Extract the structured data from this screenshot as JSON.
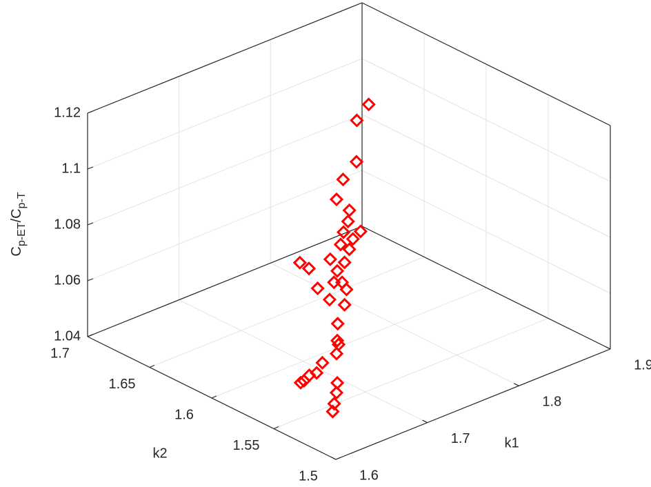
{
  "chart_data": {
    "type": "scatter3d",
    "xlabel": "k1",
    "ylabel": "k2",
    "zlabel": [
      "C",
      "p-ET",
      "/C",
      "p-T"
    ],
    "color": "#ff0000",
    "grid": true,
    "xlim": [
      1.6,
      1.9
    ],
    "xticks": [
      1.6,
      1.7,
      1.8,
      1.9
    ],
    "ylim": [
      1.5,
      1.7
    ],
    "yticks": [
      1.5,
      1.55,
      1.6,
      1.65,
      1.7
    ],
    "zlim": [
      1.04,
      1.12
    ],
    "zticks": [
      1.04,
      1.06,
      1.08,
      1.1,
      1.12
    ],
    "x": [
      1.872,
      1.859,
      1.822,
      1.806,
      1.788,
      1.779,
      1.76,
      1.768,
      1.759,
      1.753,
      1.749,
      1.745,
      1.733,
      1.728,
      1.735,
      1.733,
      1.725,
      1.716,
      1.714,
      1.709,
      1.708,
      1.699,
      1.695,
      1.678,
      1.664,
      1.66,
      1.651,
      1.645,
      1.636,
      1.632,
      1.629,
      1.628,
      1.626,
      1.617,
      1.609,
      1.602
    ],
    "y": [
      1.674,
      1.674,
      1.647,
      1.646,
      1.638,
      1.621,
      1.598,
      1.614,
      1.611,
      1.599,
      1.606,
      1.596,
      1.627,
      1.616,
      1.604,
      1.591,
      1.591,
      1.587,
      1.579,
      1.595,
      1.571,
      1.578,
      1.563,
      1.556,
      1.546,
      1.542,
      1.537,
      1.544,
      1.542,
      1.545,
      1.547,
      1.549,
      1.518,
      1.512,
      1.508,
      1.504
    ],
    "z": [
      1.093,
      1.089,
      1.085,
      1.081,
      1.078,
      1.079,
      1.079,
      1.078,
      1.076,
      1.077,
      1.074,
      1.075,
      1.065,
      1.066,
      1.071,
      1.073,
      1.071,
      1.069,
      1.071,
      1.066,
      1.071,
      1.067,
      1.069,
      1.066,
      1.064,
      1.064,
      1.063,
      1.059,
      1.057,
      1.056,
      1.054,
      1.053,
      1.06,
      1.059,
      1.057,
      1.056
    ]
  }
}
